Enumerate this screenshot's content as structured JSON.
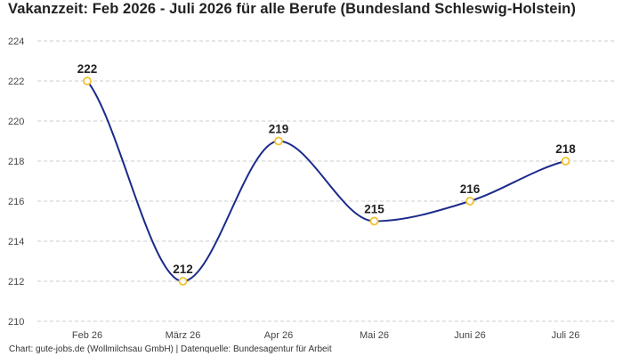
{
  "title": "Vakanzzeit: Feb 2026 - Juli 2026 für alle Berufe (Bundesland Schleswig-Holstein)",
  "footer": "Chart: gute-jobs.de (Wollmilchsau GmbH) | Datenquelle: Bundesagentur für Arbeit",
  "colors": {
    "line": "#1a2a8a",
    "marker_stroke": "#f2c12e",
    "marker_fill": "#ffffff",
    "grid": "#cccccc",
    "text": "#222222",
    "tick_text": "#444444"
  },
  "chart_data": {
    "type": "line",
    "title": "Vakanzzeit: Feb 2026 - Juli 2026 für alle Berufe (Bundesland Schleswig-Holstein)",
    "categories": [
      "Feb 26",
      "März 26",
      "Apr 26",
      "Mai 26",
      "Juni 26",
      "Juli 26"
    ],
    "series": [
      {
        "values": [
          222,
          212,
          219,
          215,
          216,
          218
        ]
      }
    ],
    "data_labels": [
      "222",
      "212",
      "219",
      "215",
      "216",
      "218"
    ],
    "y_ticks": [
      "210",
      "212",
      "214",
      "216",
      "218",
      "220",
      "222",
      "224"
    ],
    "ylim": [
      210,
      224
    ],
    "xlabel": "",
    "ylabel": "",
    "grid": true,
    "legend": "none"
  }
}
